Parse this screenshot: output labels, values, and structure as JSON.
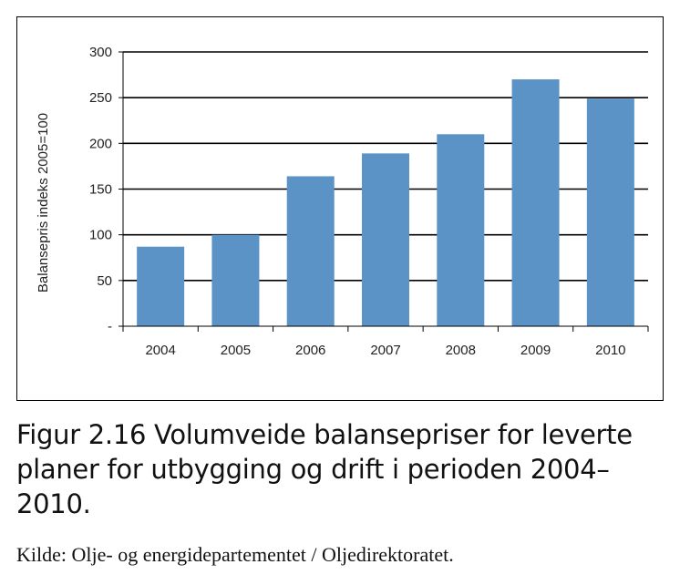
{
  "chart_data": {
    "type": "bar",
    "categories": [
      "2004",
      "2005",
      "2006",
      "2007",
      "2008",
      "2009",
      "2010"
    ],
    "values": [
      87,
      100,
      164,
      189,
      210,
      270,
      249
    ],
    "title": "",
    "xlabel": "",
    "ylabel": "Balansepris indeks 2005=100",
    "ylim": [
      0,
      300
    ],
    "yticks": [
      0,
      50,
      100,
      150,
      200,
      250,
      300
    ],
    "ytick_labels": [
      "-",
      "50",
      "100",
      "150",
      "200",
      "250",
      "300"
    ],
    "grid": true,
    "bar_color": "#5b93c7"
  },
  "caption": "Figur 2.16  Volumveide balansepriser for leverte planer for utbygging og drift i perioden 2004–2010.",
  "source": "Kilde: Olje- og energidepartementet / Oljedirektoratet."
}
